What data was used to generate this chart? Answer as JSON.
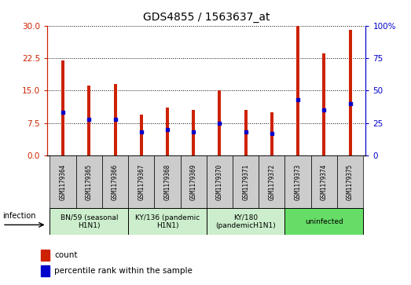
{
  "title": "GDS4855 / 1563637_at",
  "samples": [
    "GSM1179364",
    "GSM1179365",
    "GSM1179366",
    "GSM1179367",
    "GSM1179368",
    "GSM1179369",
    "GSM1179370",
    "GSM1179371",
    "GSM1179372",
    "GSM1179373",
    "GSM1179374",
    "GSM1179375"
  ],
  "counts": [
    22.0,
    16.2,
    16.5,
    9.5,
    11.0,
    10.5,
    15.0,
    10.5,
    10.0,
    30.0,
    23.5,
    29.0
  ],
  "percentiles": [
    33,
    28,
    28,
    18,
    20,
    18,
    25,
    18,
    17,
    43,
    35,
    40
  ],
  "ylim_left": [
    0,
    30
  ],
  "ylim_right": [
    0,
    100
  ],
  "yticks_left": [
    0,
    7.5,
    15,
    22.5,
    30
  ],
  "yticks_right": [
    0,
    25,
    50,
    75,
    100
  ],
  "bar_color": "#cc2200",
  "dot_color": "#0000cc",
  "bar_width": 0.12,
  "groups": [
    {
      "label": "BN/59 (seasonal\nH1N1)",
      "start": 0,
      "end": 3,
      "color": "#cceecc"
    },
    {
      "label": "KY/136 (pandemic\nH1N1)",
      "start": 3,
      "end": 6,
      "color": "#cceecc"
    },
    {
      "label": "KY/180\n(pandemicH1N1)",
      "start": 6,
      "end": 9,
      "color": "#cceecc"
    },
    {
      "label": "uninfected",
      "start": 9,
      "end": 12,
      "color": "#66dd66"
    }
  ],
  "sample_box_color": "#cccccc",
  "group_border_color": "#000000",
  "infection_label": "infection",
  "legend_count_label": "count",
  "legend_percentile_label": "percentile rank within the sample"
}
